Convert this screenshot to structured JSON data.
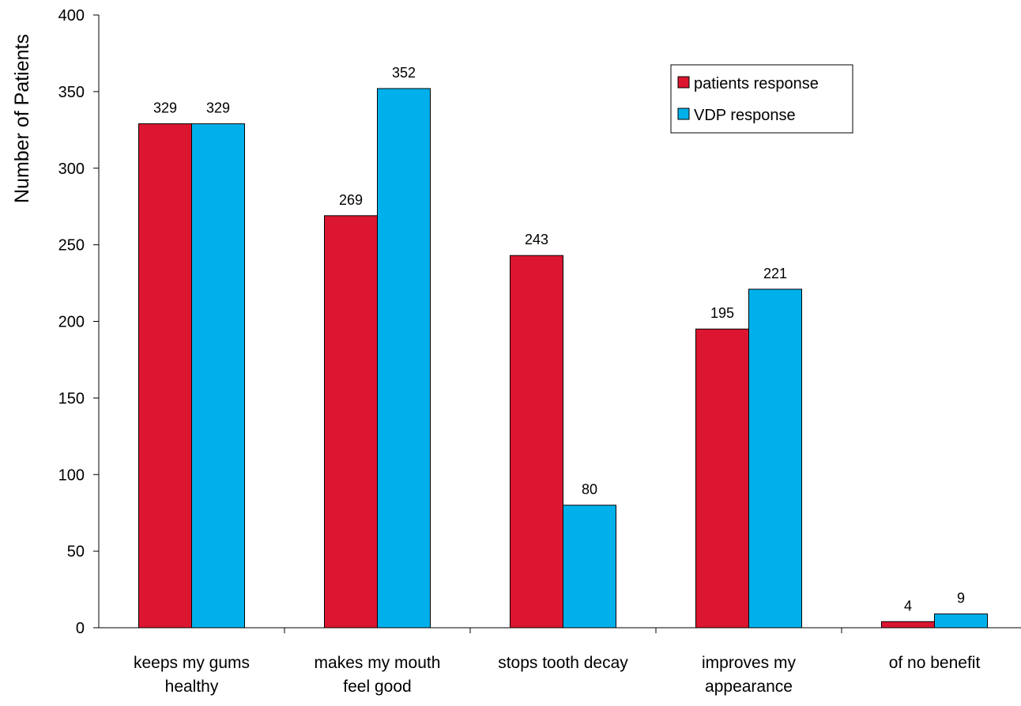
{
  "chart_data": {
    "type": "bar",
    "title": "",
    "xlabel": "",
    "ylabel": "Number of Patients",
    "ylim": [
      0,
      400
    ],
    "yticks": [
      0,
      50,
      100,
      150,
      200,
      250,
      300,
      350,
      400
    ],
    "grid": false,
    "legend_position": "top-right",
    "categories": [
      [
        "keeps my gums",
        "healthy"
      ],
      [
        "makes my mouth",
        "feel good"
      ],
      [
        "stops tooth decay"
      ],
      [
        "improves my",
        "appearance"
      ],
      [
        "of no benefit"
      ]
    ],
    "series": [
      {
        "name": "patients response",
        "color": "#DC1630",
        "values": [
          329,
          269,
          243,
          195,
          4
        ]
      },
      {
        "name": "VDP response",
        "color": "#00B0EA",
        "values": [
          329,
          352,
          80,
          221,
          9
        ]
      }
    ]
  }
}
